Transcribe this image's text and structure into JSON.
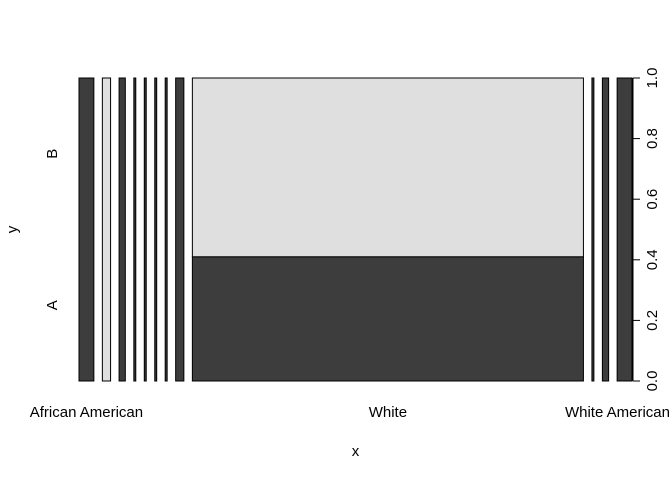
{
  "chart_data": {
    "type": "spineplot",
    "xlabel": "x",
    "ylabel": "y",
    "x_categories": [
      "African American",
      "",
      "",
      "",
      "",
      "",
      "",
      "",
      "White",
      "",
      "",
      "White American"
    ],
    "x_tick_labels": [
      {
        "category_index": 0,
        "text": "African American"
      },
      {
        "category_index": 8,
        "text": "White"
      },
      {
        "category_index": 11,
        "text": "White American"
      }
    ],
    "y_levels": [
      "A",
      "B"
    ],
    "column_widths_pct": [
      3.8,
      2.1,
      1.6,
      0.5,
      0.5,
      0.5,
      0.5,
      2.1,
      100.0,
      0.5,
      1.6,
      3.8
    ],
    "prop_A": [
      1.0,
      0.0,
      1.0,
      1.0,
      1.0,
      1.0,
      1.0,
      1.0,
      0.41,
      1.0,
      1.0,
      1.0
    ],
    "right_axis": {
      "ticks": [
        0.0,
        0.2,
        0.4,
        0.6,
        0.8,
        1.0
      ],
      "labels": [
        "0.0",
        "0.2",
        "0.4",
        "0.6",
        "0.8",
        "1.0"
      ]
    },
    "colors": {
      "A": "#3d3d3d",
      "B": "#dfdfdf",
      "stroke": "#000000"
    }
  }
}
